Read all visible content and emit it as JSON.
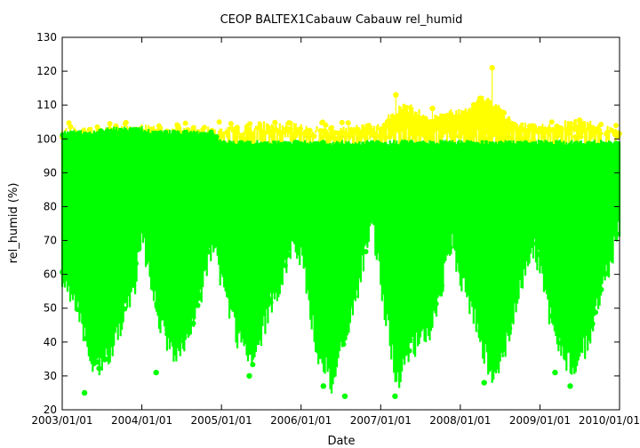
{
  "chart_data": {
    "type": "scatter",
    "title": "CEOP BALTEX1Cabauw Cabauw  rel_humid",
    "xlabel": "Date",
    "ylabel": "rel_humid (%)",
    "ylim": [
      20,
      130
    ],
    "yticks": [
      20,
      30,
      40,
      50,
      60,
      70,
      80,
      90,
      100,
      110,
      120,
      130
    ],
    "xticks": [
      "2003/01/01",
      "2004/01/01",
      "2005/01/01",
      "2006/01/01",
      "2007/01/01",
      "2008/01/01",
      "2009/01/01",
      "2010/01/01"
    ],
    "xlim_years": [
      2003.0,
      2010.0
    ],
    "grid": false,
    "legend": "none",
    "series": [
      {
        "color": "#ffff00",
        "marker": "circle",
        "envelope": {
          "x": [
            2003.0,
            2004.0,
            2005.0,
            2005.5,
            2006.0,
            2006.5,
            2007.0,
            2007.3,
            2007.6,
            2008.0,
            2008.3,
            2008.5,
            2008.7,
            2009.0,
            2009.5,
            2010.0
          ],
          "y_high": [
            102,
            103,
            102,
            104,
            103,
            102,
            104,
            110,
            106,
            108,
            112,
            109,
            104,
            103,
            105,
            102
          ],
          "y_low": [
            99,
            99,
            99,
            99,
            99,
            99,
            99,
            99,
            99,
            99,
            99,
            99,
            99,
            99,
            99,
            99
          ]
        },
        "outliers": [
          {
            "x": 2008.4,
            "y": 121
          },
          {
            "x": 2007.19,
            "y": 113
          },
          {
            "x": 2008.25,
            "y": 112
          },
          {
            "x": 2007.65,
            "y": 109
          },
          {
            "x": 2009.5,
            "y": 105.5
          }
        ]
      },
      {
        "color": "#00ff00",
        "marker": "circle",
        "envelope": {
          "x": [
            2003.0,
            2003.2,
            2003.4,
            2003.6,
            2003.9,
            2004.0,
            2004.2,
            2004.4,
            2004.6,
            2004.9,
            2005.0,
            2005.2,
            2005.4,
            2005.6,
            2005.9,
            2006.0,
            2006.2,
            2006.4,
            2006.6,
            2006.9,
            2007.0,
            2007.2,
            2007.4,
            2007.6,
            2007.9,
            2008.0,
            2008.2,
            2008.4,
            2008.6,
            2008.9,
            2009.0,
            2009.2,
            2009.4,
            2009.6,
            2009.9,
            2010.0
          ],
          "y_high": [
            102,
            102,
            102,
            103,
            103,
            103,
            102,
            102,
            102,
            102,
            99,
            99,
            99,
            99,
            99,
            99,
            99,
            99,
            99,
            99,
            99,
            99,
            99,
            99,
            99,
            99,
            99,
            99,
            99,
            99,
            99,
            99,
            99,
            99,
            99,
            99
          ],
          "y_low": [
            58,
            50,
            30,
            36,
            55,
            72,
            48,
            35,
            40,
            70,
            58,
            42,
            33,
            50,
            68,
            65,
            38,
            27,
            45,
            75,
            58,
            28,
            38,
            42,
            68,
            60,
            45,
            30,
            40,
            70,
            62,
            40,
            32,
            40,
            65,
            75
          ]
        },
        "min_points": [
          {
            "x": 2003.28,
            "y": 25
          },
          {
            "x": 2004.18,
            "y": 31
          },
          {
            "x": 2005.35,
            "y": 30
          },
          {
            "x": 2006.28,
            "y": 27
          },
          {
            "x": 2006.55,
            "y": 24
          },
          {
            "x": 2007.18,
            "y": 24
          },
          {
            "x": 2008.3,
            "y": 28
          },
          {
            "x": 2009.19,
            "y": 31
          },
          {
            "x": 2009.38,
            "y": 27
          }
        ]
      }
    ]
  }
}
